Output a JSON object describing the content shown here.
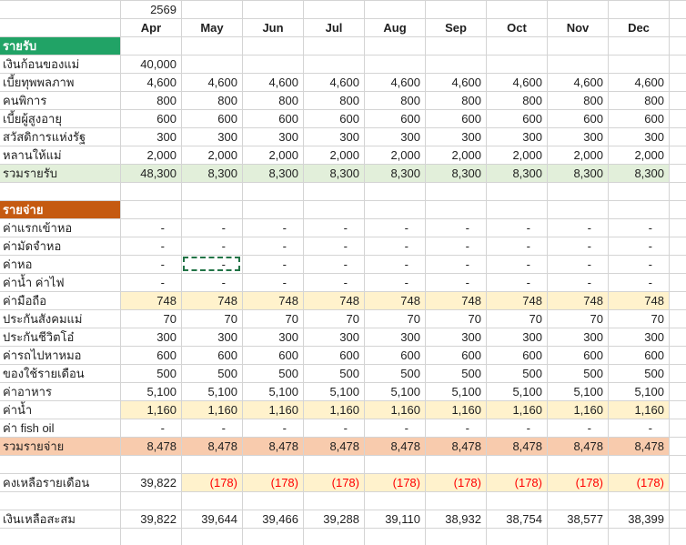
{
  "year_label": "2569",
  "columns": [
    "Apr",
    "May",
    "Jun",
    "Jul",
    "Aug",
    "Sep",
    "Oct",
    "Nov",
    "Dec"
  ],
  "income": {
    "section_label": "รายรับ",
    "rows": [
      {
        "label": "เงินก้อนของแม่",
        "values": [
          "40,000",
          "",
          "",
          "",
          "",
          "",
          "",
          "",
          ""
        ]
      },
      {
        "label": "เบี้ยทุพพลภาพ",
        "values": [
          "4,600",
          "4,600",
          "4,600",
          "4,600",
          "4,600",
          "4,600",
          "4,600",
          "4,600",
          "4,600"
        ]
      },
      {
        "label": "คนพิการ",
        "values": [
          "800",
          "800",
          "800",
          "800",
          "800",
          "800",
          "800",
          "800",
          "800"
        ]
      },
      {
        "label": "เบี้ยผู้สูงอายุ",
        "values": [
          "600",
          "600",
          "600",
          "600",
          "600",
          "600",
          "600",
          "600",
          "600"
        ]
      },
      {
        "label": "สวัสดิการแห่งรัฐ",
        "values": [
          "300",
          "300",
          "300",
          "300",
          "300",
          "300",
          "300",
          "300",
          "300"
        ]
      },
      {
        "label": "หลานให้แม่",
        "values": [
          "2,000",
          "2,000",
          "2,000",
          "2,000",
          "2,000",
          "2,000",
          "2,000",
          "2,000",
          "2,000"
        ]
      }
    ],
    "total": {
      "label": "รวมรายรับ",
      "values": [
        "48,300",
        "8,300",
        "8,300",
        "8,300",
        "8,300",
        "8,300",
        "8,300",
        "8,300",
        "8,300"
      ]
    }
  },
  "expenses": {
    "section_label": "รายจ่าย",
    "rows": [
      {
        "label": "ค่าแรกเข้าหอ",
        "values": [
          "-",
          "-",
          "-",
          "-",
          "-",
          "-",
          "-",
          "-",
          "-"
        ],
        "highlight": false
      },
      {
        "label": "ค่ามัดจำหอ",
        "values": [
          "-",
          "-",
          "-",
          "-",
          "-",
          "-",
          "-",
          "-",
          "-"
        ],
        "highlight": false
      },
      {
        "label": "ค่าหอ",
        "values": [
          "-",
          "-",
          "-",
          "-",
          "-",
          "-",
          "-",
          "-",
          "-"
        ],
        "highlight": false
      },
      {
        "label": "ค่าน้ำ ค่าไฟ",
        "values": [
          "-",
          "-",
          "-",
          "-",
          "-",
          "-",
          "-",
          "-",
          "-"
        ],
        "highlight": false
      },
      {
        "label": "ค่ามือถือ",
        "values": [
          "748",
          "748",
          "748",
          "748",
          "748",
          "748",
          "748",
          "748",
          "748"
        ],
        "highlight": true
      },
      {
        "label": "ประกันสังคมแม่",
        "values": [
          "70",
          "70",
          "70",
          "70",
          "70",
          "70",
          "70",
          "70",
          "70"
        ],
        "highlight": false
      },
      {
        "label": "ประกันชีวิตโอ๋",
        "values": [
          "300",
          "300",
          "300",
          "300",
          "300",
          "300",
          "300",
          "300",
          "300"
        ],
        "highlight": false
      },
      {
        "label": "ค่ารถไปหาหมอ",
        "values": [
          "600",
          "600",
          "600",
          "600",
          "600",
          "600",
          "600",
          "600",
          "600"
        ],
        "highlight": false
      },
      {
        "label": "ของใช้รายเดือน",
        "values": [
          "500",
          "500",
          "500",
          "500",
          "500",
          "500",
          "500",
          "500",
          "500"
        ],
        "highlight": false
      },
      {
        "label": "ค่าอาหาร",
        "values": [
          "5,100",
          "5,100",
          "5,100",
          "5,100",
          "5,100",
          "5,100",
          "5,100",
          "5,100",
          "5,100"
        ],
        "highlight": false
      },
      {
        "label": "ค่าน้ำ",
        "values": [
          "1,160",
          "1,160",
          "1,160",
          "1,160",
          "1,160",
          "1,160",
          "1,160",
          "1,160",
          "1,160"
        ],
        "highlight": true
      },
      {
        "label": "ค่า fish oil",
        "values": [
          "-",
          "-",
          "-",
          "-",
          "-",
          "-",
          "-",
          "-",
          "-"
        ],
        "highlight": false
      }
    ],
    "total": {
      "label": "รวมรายจ่าย",
      "values": [
        "8,478",
        "8,478",
        "8,478",
        "8,478",
        "8,478",
        "8,478",
        "8,478",
        "8,478",
        "8,478"
      ]
    }
  },
  "summary": {
    "monthly_balance": {
      "label": "คงเหลือรายเดือน",
      "values": [
        "39,822",
        "(178)",
        "(178)",
        "(178)",
        "(178)",
        "(178)",
        "(178)",
        "(178)",
        "(178)"
      ]
    },
    "accumulated": {
      "label": "เงินเหลือสะสม",
      "values": [
        "39,822",
        "39,644",
        "39,466",
        "39,288",
        "39,110",
        "38,932",
        "38,754",
        "38,577",
        "38,399"
      ]
    }
  },
  "selection": {
    "row_label": "ค่าหอ",
    "column": "May"
  },
  "colors": {
    "income_header_bg": "#21a366",
    "income_total_bg": "#e2efda",
    "expense_header_bg": "#c55a11",
    "expense_total_bg": "#f8cbad",
    "highlight_bg": "#fff2cc",
    "negative_text": "#ff0000",
    "gridline": "#d4d4d4",
    "header_text": "#ffffff",
    "selection_border": "#217346"
  }
}
